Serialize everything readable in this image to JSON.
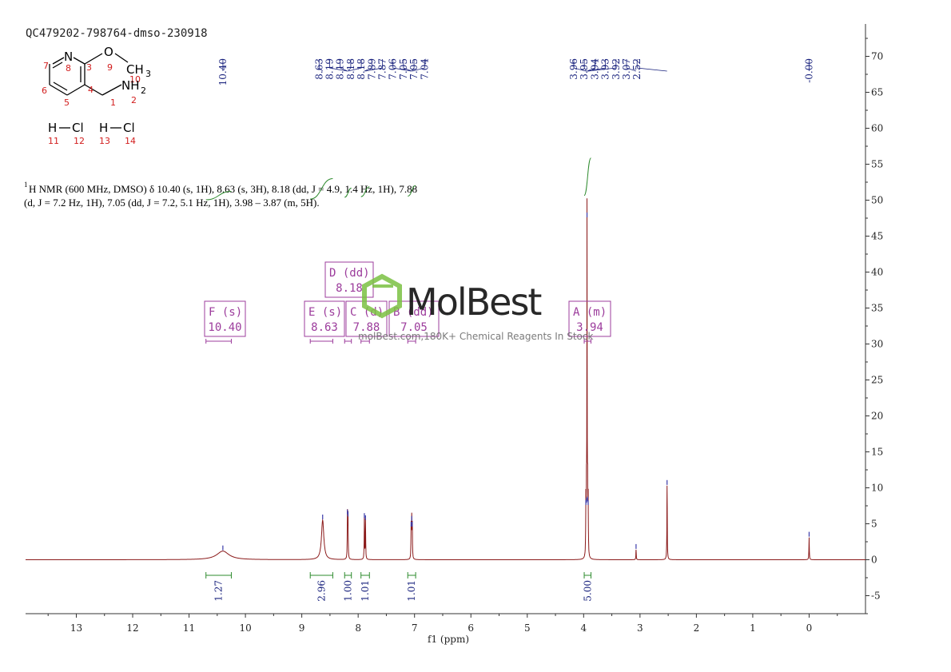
{
  "sample_id": "QC479202-798764-dmso-230918",
  "structure": {
    "atoms": [
      {
        "text": "N",
        "color": "#000000"
      },
      {
        "text": "8",
        "color": "#d21e1e"
      },
      {
        "text": "3",
        "color": "#d21e1e"
      },
      {
        "text": "O",
        "color": "#000000"
      },
      {
        "text": "9",
        "color": "#d21e1e"
      },
      {
        "text": "CH",
        "color": "#000000"
      },
      {
        "text": "3",
        "color": "#000000"
      },
      {
        "text": "10",
        "color": "#d21e1e"
      },
      {
        "text": "7",
        "color": "#d21e1e"
      },
      {
        "text": "6",
        "color": "#d21e1e"
      },
      {
        "text": "5",
        "color": "#d21e1e"
      },
      {
        "text": "4",
        "color": "#d21e1e"
      },
      {
        "text": "1",
        "color": "#d21e1e"
      },
      {
        "text": "NH",
        "color": "#000000"
      },
      {
        "text": "2",
        "color": "#000000"
      },
      {
        "text": "2",
        "color": "#d21e1e"
      },
      {
        "text": "H",
        "color": "#000000"
      },
      {
        "text": "Cl",
        "color": "#000000"
      },
      {
        "text": "11",
        "color": "#d21e1e"
      },
      {
        "text": "12",
        "color": "#d21e1e"
      },
      {
        "text": "H",
        "color": "#000000"
      },
      {
        "text": "Cl",
        "color": "#000000"
      },
      {
        "text": "13",
        "color": "#d21e1e"
      },
      {
        "text": "14",
        "color": "#d21e1e"
      }
    ]
  },
  "description": {
    "sup": "1",
    "line1": "H NMR (600 MHz, DMSO) δ 10.40 (s, 1H), 8.63 (s, 3H), 8.18 (dd, J = 4.9, 1.4 Hz, 1H), 7.88",
    "line2": "(d, J = 7.2 Hz, 1H), 7.05 (dd, J = 7.2, 5.1 Hz, 1H), 3.98 – 3.87 (m, 5H)."
  },
  "watermark": {
    "brand": "MolBest",
    "tagline": "molBest.com,180K+ Chemical Reagents In Stock"
  },
  "colors": {
    "spectrum": "#8b1a1a",
    "peak_label": "#1a237e",
    "integral": "#2e8b2e",
    "multiplet_box": "#9c3c9c",
    "axis": "#333333",
    "logo": "#7bc142"
  },
  "chart_data": {
    "type": "line",
    "title": "",
    "xlabel": "f1 (ppm)",
    "ylabel": "",
    "x_reversed": true,
    "xlim": [
      13.9,
      -1.0
    ],
    "ylim": [
      -7.5,
      74.5
    ],
    "x_ticks": [
      13,
      12,
      11,
      10,
      9,
      8,
      7,
      6,
      5,
      4,
      3,
      2,
      1,
      0
    ],
    "y_ticks": [
      -5,
      0,
      5,
      10,
      15,
      20,
      25,
      30,
      35,
      40,
      45,
      50,
      55,
      60,
      65,
      70
    ],
    "peaks": [
      {
        "x": 10.4,
        "height": 1.2,
        "width": 0.13
      },
      {
        "x": 8.63,
        "height": 5.5,
        "width": 0.025
      },
      {
        "x": 8.19,
        "height": 6.2,
        "width": 0.004
      },
      {
        "x": 8.18,
        "height": 5.9,
        "width": 0.004
      },
      {
        "x": 7.89,
        "height": 5.7,
        "width": 0.004
      },
      {
        "x": 7.87,
        "height": 5.4,
        "width": 0.004
      },
      {
        "x": 7.06,
        "height": 4.5,
        "width": 0.004
      },
      {
        "x": 7.05,
        "height": 5.3,
        "width": 0.004
      },
      {
        "x": 7.04,
        "height": 4.5,
        "width": 0.004
      },
      {
        "x": 3.96,
        "height": 7.5,
        "width": 0.004
      },
      {
        "x": 3.95,
        "height": 7.8,
        "width": 0.004
      },
      {
        "x": 3.94,
        "height": 47.5,
        "width": 0.003
      },
      {
        "x": 3.93,
        "height": 8.0,
        "width": 0.004
      },
      {
        "x": 3.92,
        "height": 7.5,
        "width": 0.004
      },
      {
        "x": 3.07,
        "height": 1.4,
        "width": 0.004
      },
      {
        "x": 2.52,
        "height": 10.3,
        "width": 0.004
      },
      {
        "x": 0.0,
        "height": 3.1,
        "width": 0.004
      }
    ],
    "peak_labels": {
      "groups": [
        {
          "labels": [
            "10.40"
          ],
          "x": [
            10.4
          ]
        },
        {
          "labels": [
            "8.63",
            "8.19",
            "8.19",
            "8.18",
            "8.18",
            "7.89",
            "7.87",
            "7.06",
            "7.05",
            "7.05",
            "7.04"
          ],
          "x": [
            8.63,
            8.19,
            8.19,
            8.18,
            8.18,
            7.89,
            7.87,
            7.06,
            7.05,
            7.05,
            7.04
          ]
        },
        {
          "labels": [
            "3.96",
            "3.95",
            "3.94",
            "3.93",
            "3.92",
            "3.07",
            "2.52"
          ],
          "x": [
            3.96,
            3.95,
            3.94,
            3.93,
            3.92,
            3.07,
            2.52
          ]
        },
        {
          "labels": [
            "-0.00"
          ],
          "x": [
            0.0
          ]
        }
      ]
    },
    "integrals": [
      {
        "label": "1.27",
        "from": 10.7,
        "to": 10.25
      },
      {
        "label": "2.96",
        "from": 8.85,
        "to": 8.45
      },
      {
        "label": "1.00",
        "from": 8.24,
        "to": 8.12
      },
      {
        "label": "1.01",
        "from": 7.95,
        "to": 7.8
      },
      {
        "label": "1.01",
        "from": 7.12,
        "to": 6.98
      },
      {
        "label": "5.00",
        "from": 3.99,
        "to": 3.87
      }
    ],
    "multiplets": [
      {
        "id": "F",
        "type": "(s)",
        "shift": "10.40",
        "from": 10.7,
        "to": 10.25
      },
      {
        "id": "E",
        "type": "(s)",
        "shift": "8.63",
        "from": 8.85,
        "to": 8.45
      },
      {
        "id": "D",
        "type": "(dd)",
        "shift": "8.18",
        "from": 8.24,
        "to": 8.12
      },
      {
        "id": "C",
        "type": "(d)",
        "shift": "7.88",
        "from": 7.95,
        "to": 7.8
      },
      {
        "id": "B",
        "type": "(dd)",
        "shift": "7.05",
        "from": 7.12,
        "to": 6.98
      },
      {
        "id": "A",
        "type": "(m)",
        "shift": "3.94",
        "from": 3.99,
        "to": 3.87
      }
    ]
  }
}
